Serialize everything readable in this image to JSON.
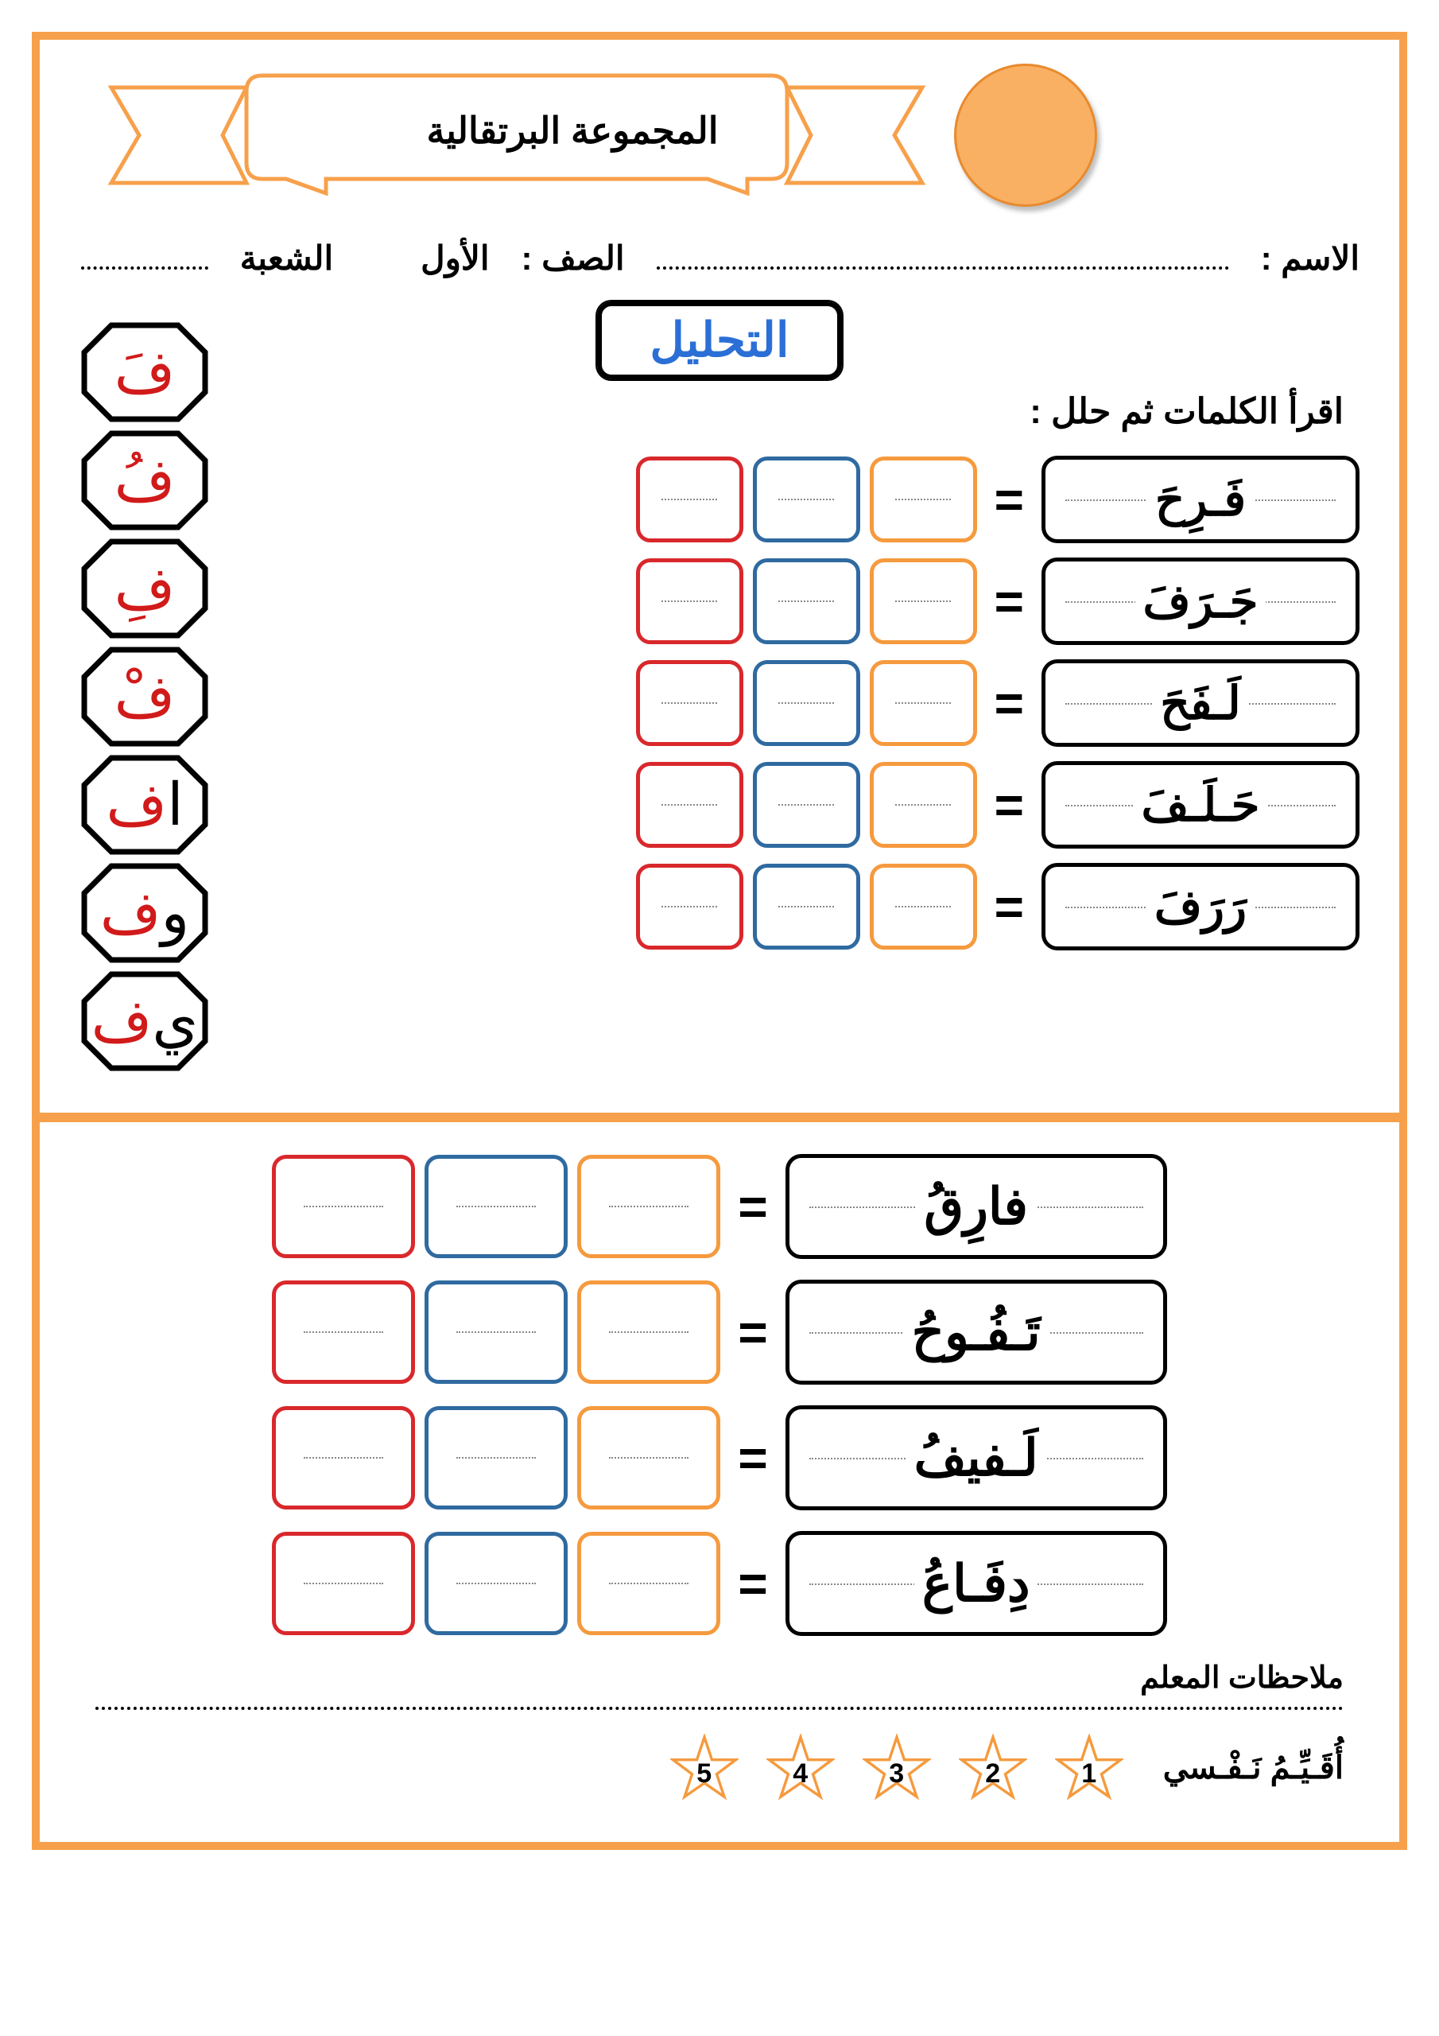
{
  "colors": {
    "border": "#f7a04b",
    "circle_fill": "#f9b062",
    "circle_stroke": "#e88a2e",
    "banner_stroke": "#f7a04b",
    "title_text": "#2b6fd6",
    "slot_red": "#d9282c",
    "slot_blue": "#2f6aa0",
    "slot_orange": "#f59a3e",
    "letter_red": "#d11a1a",
    "star_stroke": "#f59a3e"
  },
  "header": {
    "banner_text": "المجموعة البرتقالية"
  },
  "meta": {
    "name_label": "الاسم :",
    "class_label": "الصف :",
    "class_value": "الأول",
    "section_label": "الشعبة"
  },
  "title": "التحليل",
  "instruction": "اقرأ الكلمات ثم حلل :",
  "octagons": [
    {
      "letter": "فَ",
      "suffix": ""
    },
    {
      "letter": "فُ",
      "suffix": ""
    },
    {
      "letter": "فِ",
      "suffix": ""
    },
    {
      "letter": "فْ",
      "suffix": ""
    },
    {
      "letter": "ف",
      "suffix": "ا"
    },
    {
      "letter": "ف",
      "suffix": "و"
    },
    {
      "letter": "ف",
      "suffix": "ي"
    }
  ],
  "section1_words": [
    "فَـرِحَ",
    "جَـرَفَ",
    "لَـفَحَ",
    "حَـلَـفَ",
    "رَرَفَ"
  ],
  "section2_words": [
    "فارِقُ",
    "تَـفُـوحُ",
    "لَـفيفُ",
    "دِفَـاعُ"
  ],
  "small_slot_colors": [
    "slot_red",
    "slot_blue",
    "slot_orange"
  ],
  "big_slot_colors": [
    "slot_red",
    "slot_blue",
    "slot_orange"
  ],
  "footer": {
    "teacher_label": "ملاحظات المعلم",
    "self_eval_label": "أُقَـيِّـمُ نَـفْـسي",
    "stars": [
      "5",
      "4",
      "3",
      "2",
      "1"
    ]
  }
}
